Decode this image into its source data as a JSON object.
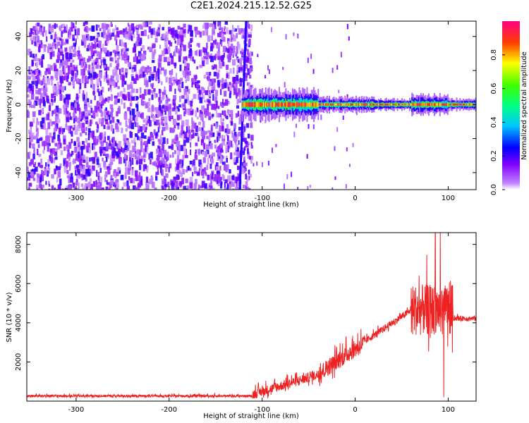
{
  "title": "C2E1.2024.215.12.52.G25",
  "chart_data": [
    {
      "type": "heatmap",
      "xlabel": "Height of straight line (km)",
      "ylabel": "Frequency (Hz)",
      "xlim": [
        -353,
        130
      ],
      "ylim": [
        -50,
        49
      ],
      "xticks": [
        -300,
        -200,
        -100,
        0,
        100
      ],
      "yticks": [
        -40,
        -20,
        0,
        20,
        40
      ],
      "colorbar": {
        "label": "Normalized spectral amplitude",
        "range": [
          0.0,
          1.0
        ],
        "ticks": [
          "0.0",
          "0.2",
          "0.4",
          "0.6",
          "0.8"
        ],
        "stops": [
          "#ffffff",
          "#8000ff",
          "#0000ff",
          "#00ffff",
          "#00ff00",
          "#ffff00",
          "#ff0000",
          "#ff0080"
        ]
      },
      "features": {
        "noise_region_x": [
          -353,
          -120
        ],
        "noise_level": 0.2,
        "vertical_streak_x": [
          -125,
          -118
        ],
        "carrier_band_x": [
          -122,
          130
        ],
        "carrier_freq_hz": 0
      }
    },
    {
      "type": "line",
      "xlabel": "Height of straight line (km)",
      "ylabel": "SNR (10 * v/v)",
      "xlim": [
        -353,
        130
      ],
      "ylim": [
        0,
        8600
      ],
      "xticks": [
        -300,
        -200,
        -100,
        0,
        100
      ],
      "yticks": [
        2000,
        4000,
        6000,
        8000
      ],
      "series": [
        {
          "color": "#ee2222",
          "segments": [
            {
              "x": [
                -353,
                -110
              ],
              "baseline": 250,
              "noise": 120
            },
            {
              "x": [
                -110,
                -40
              ],
              "start": 300,
              "end": 1300,
              "noise": 500
            },
            {
              "x": [
                -40,
                10
              ],
              "start": 1300,
              "end": 2900,
              "noise": 900
            },
            {
              "x": [
                10,
                60
              ],
              "start": 3000,
              "end": 4600,
              "noise": 350
            },
            {
              "x": [
                60,
                105
              ],
              "baseline": 4400,
              "noise": 2600
            },
            {
              "x": [
                105,
                130
              ],
              "baseline": 4200,
              "noise": 250
            }
          ]
        }
      ]
    }
  ]
}
